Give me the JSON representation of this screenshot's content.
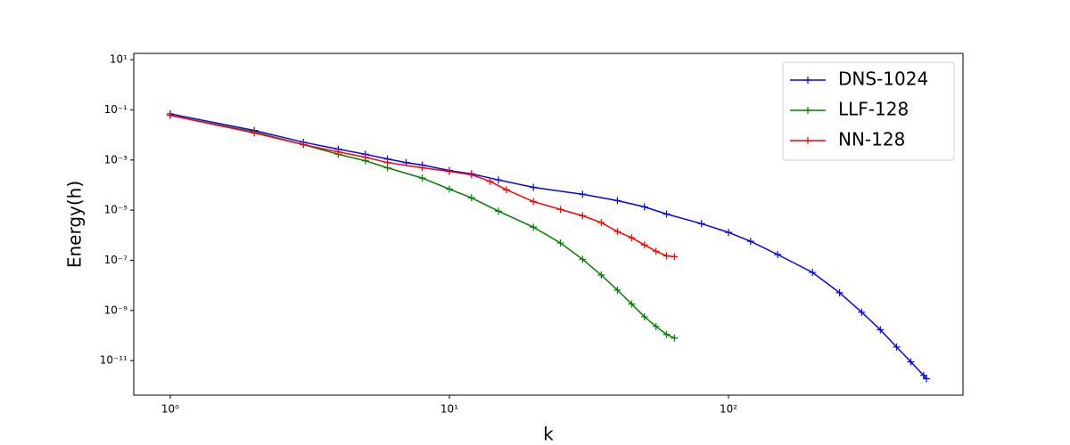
{
  "chart_data": {
    "type": "line",
    "xlabel": "k",
    "ylabel": "Energy(h)",
    "xscale": "log",
    "yscale": "log",
    "xlim": [
      0.74,
      692
    ],
    "ylim": [
      4.2e-13,
      17.8
    ],
    "xticks": [
      {
        "value": 1,
        "label": "10⁰"
      },
      {
        "value": 10,
        "label": "10¹"
      },
      {
        "value": 100,
        "label": "10²"
      }
    ],
    "yticks": [
      {
        "value": 1e-11,
        "label": "10⁻¹¹"
      },
      {
        "value": 1e-09,
        "label": "10⁻⁹"
      },
      {
        "value": 1e-07,
        "label": "10⁻⁷"
      },
      {
        "value": 1e-05,
        "label": "10⁻⁵"
      },
      {
        "value": 0.001,
        "label": "10⁻³"
      },
      {
        "value": 0.1,
        "label": "10⁻¹"
      },
      {
        "value": 10,
        "label": "10¹"
      }
    ],
    "legend": "upper right",
    "series": [
      {
        "name": "DNS-1024",
        "color": "#0000ff",
        "x": [
          1,
          2,
          3,
          4,
          5,
          6,
          7,
          8,
          10,
          12,
          15,
          20,
          30,
          40,
          50,
          60,
          80,
          100,
          120,
          150,
          200,
          250,
          300,
          350,
          400,
          450,
          500,
          512
        ],
        "values": [
          0.069,
          0.015,
          0.0051,
          0.0027,
          0.0017,
          0.0011,
          0.00079,
          0.00063,
          0.00038,
          0.00028,
          0.00016,
          8.1e-05,
          4.3e-05,
          2.4e-05,
          1.35e-05,
          7e-06,
          2.9e-06,
          1.3e-06,
          5.7e-07,
          1.7e-07,
          3.3e-08,
          5.1e-09,
          8.5e-10,
          1.7e-10,
          3.5e-11,
          8.9e-12,
          2.6e-12,
          1.9e-12
        ]
      },
      {
        "name": "LLF-128",
        "color": "#008000",
        "x": [
          1,
          2,
          3,
          4,
          5,
          6,
          8,
          10,
          12,
          15,
          20,
          25,
          30,
          35,
          40,
          45,
          50,
          55,
          60,
          64
        ],
        "values": [
          0.06,
          0.013,
          0.0041,
          0.0017,
          0.00093,
          0.00049,
          0.00019,
          6.9e-05,
          3.1e-05,
          9.1e-06,
          2.1e-06,
          4.9e-07,
          1.1e-07,
          2.6e-08,
          6.5e-09,
          1.8e-09,
          5.6e-10,
          2.3e-10,
          1.1e-10,
          8e-11
        ]
      },
      {
        "name": "NN-128",
        "color": "#ff0000",
        "x": [
          1,
          2,
          3,
          4,
          5,
          6,
          8,
          10,
          12,
          14,
          16,
          20,
          25,
          30,
          35,
          40,
          45,
          50,
          55,
          60,
          64
        ],
        "values": [
          0.06,
          0.012,
          0.0041,
          0.0021,
          0.0013,
          0.00079,
          0.00049,
          0.00035,
          0.00026,
          0.00014,
          6.5e-05,
          2.2e-05,
          1.07e-05,
          6e-06,
          3.2e-06,
          1.4e-06,
          7.9e-07,
          4.1e-07,
          2.3e-07,
          1.5e-07,
          1.4e-07
        ]
      }
    ]
  }
}
